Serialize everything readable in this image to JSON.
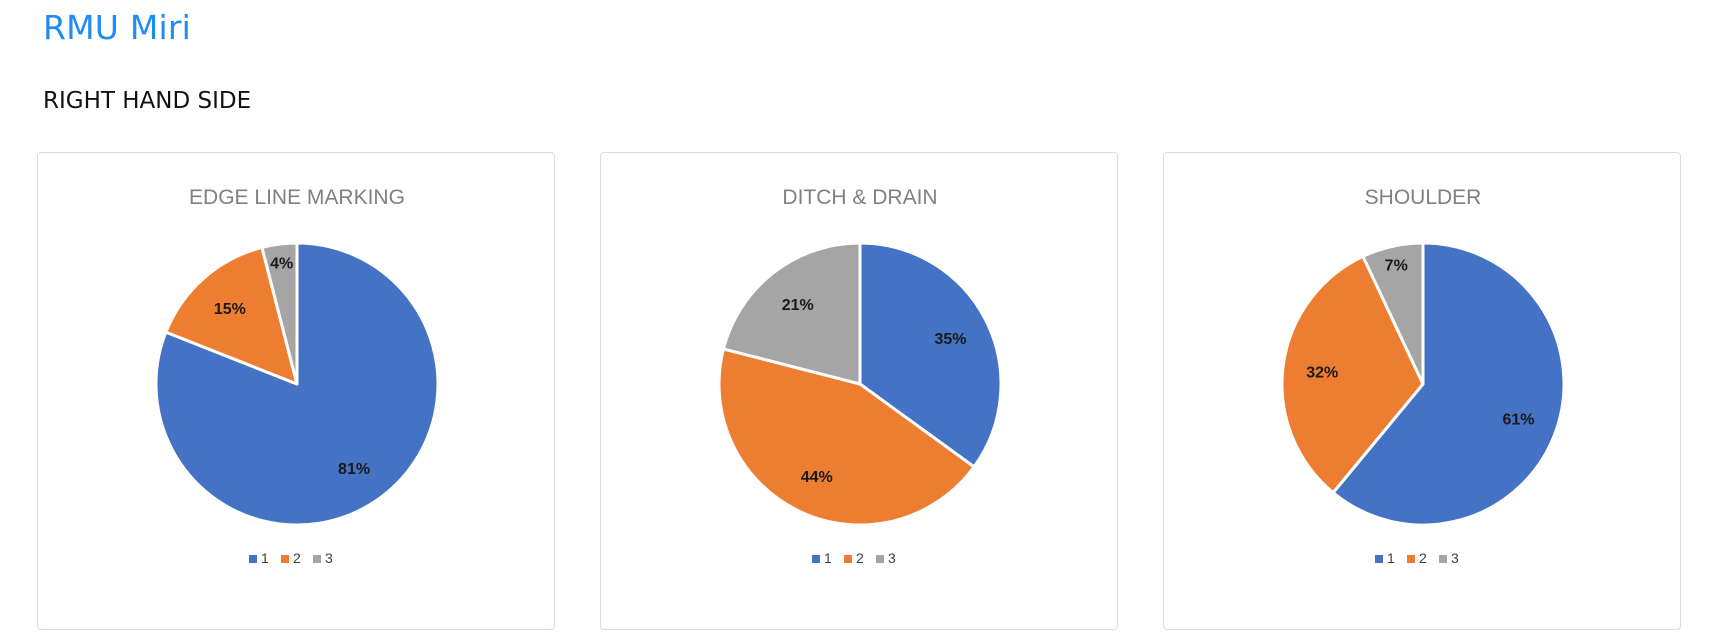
{
  "header": {
    "title": "RMU Miri",
    "section": "RIGHT HAND SIDE"
  },
  "colors": {
    "title": "#1e8cf0",
    "series": [
      "#4472c4",
      "#ed7d31",
      "#a5a5a5"
    ]
  },
  "chart_data": [
    {
      "type": "pie",
      "title": "EDGE LINE MARKING",
      "categories": [
        "1",
        "2",
        "3"
      ],
      "values": [
        81,
        15,
        4
      ],
      "labels": [
        "81%",
        "15%",
        "4%"
      ],
      "legend": "bottom"
    },
    {
      "type": "pie",
      "title": "DITCH & DRAIN",
      "categories": [
        "1",
        "2",
        "3"
      ],
      "values": [
        35,
        44,
        21
      ],
      "labels": [
        "35%",
        "44%",
        "21%"
      ],
      "legend": "bottom"
    },
    {
      "type": "pie",
      "title": "SHOULDER",
      "categories": [
        "1",
        "2",
        "3"
      ],
      "values": [
        61,
        32,
        7
      ],
      "labels": [
        "61%",
        "32%",
        "7%"
      ],
      "legend": "bottom"
    }
  ]
}
